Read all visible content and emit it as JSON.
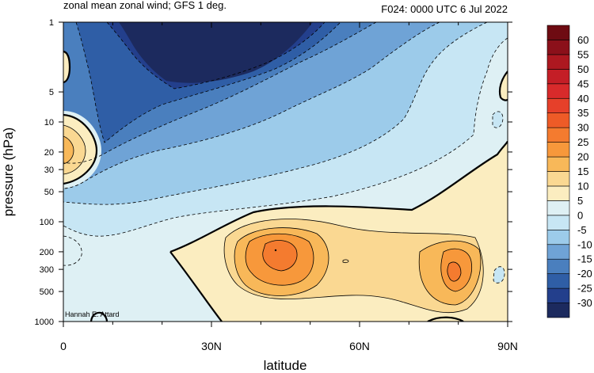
{
  "chart_data": {
    "type": "contour",
    "title_left": "zonal mean zonal wind; GFS 1 deg.",
    "title_right": "F024: 0000 UTC 6 Jul 2022",
    "xlabel": "latitude",
    "ylabel": "pressure (hPa)",
    "credit": "Hannah E. Attard",
    "x_ticks": [
      {
        "value": 0,
        "label": "0"
      },
      {
        "value": 30,
        "label": "30N"
      },
      {
        "value": 60,
        "label": "60N"
      },
      {
        "value": 90,
        "label": "90N"
      }
    ],
    "y_ticks": [
      {
        "value": 1,
        "label": "1"
      },
      {
        "value": 5,
        "label": "5"
      },
      {
        "value": 10,
        "label": "10"
      },
      {
        "value": 20,
        "label": "20"
      },
      {
        "value": 30,
        "label": "30"
      },
      {
        "value": 50,
        "label": "50"
      },
      {
        "value": 100,
        "label": "100"
      },
      {
        "value": 200,
        "label": "200"
      },
      {
        "value": 300,
        "label": "300"
      },
      {
        "value": 500,
        "label": "500"
      },
      {
        "value": 1000,
        "label": "1000"
      }
    ],
    "xlim": [
      0,
      90
    ],
    "ylim": [
      1000,
      1
    ],
    "y_scale": "log",
    "colorbar": {
      "levels": [
        -30,
        -25,
        -20,
        -15,
        -10,
        -5,
        0,
        5,
        10,
        15,
        20,
        25,
        30,
        35,
        40,
        45,
        50,
        55,
        60
      ],
      "labels": [
        "-30",
        "-25",
        "-20",
        "-15",
        "-10",
        "-5",
        "0",
        "5",
        "10",
        "15",
        "20",
        "25",
        "30",
        "35",
        "40",
        "45",
        "50",
        "55",
        "60"
      ],
      "colors": [
        "#1c2a5e",
        "#233f8c",
        "#2f5ea6",
        "#4a7fbe",
        "#6fa3d6",
        "#9ccbea",
        "#c7e6f4",
        "#def0f4",
        "#fbedc0",
        "#fad892",
        "#f8b859",
        "#f7983b",
        "#f47b2f",
        "#ee5b27",
        "#e6402a",
        "#d82a2b",
        "#c41e26",
        "#ad1820",
        "#8b101a",
        "#6e0b12"
      ]
    }
  }
}
